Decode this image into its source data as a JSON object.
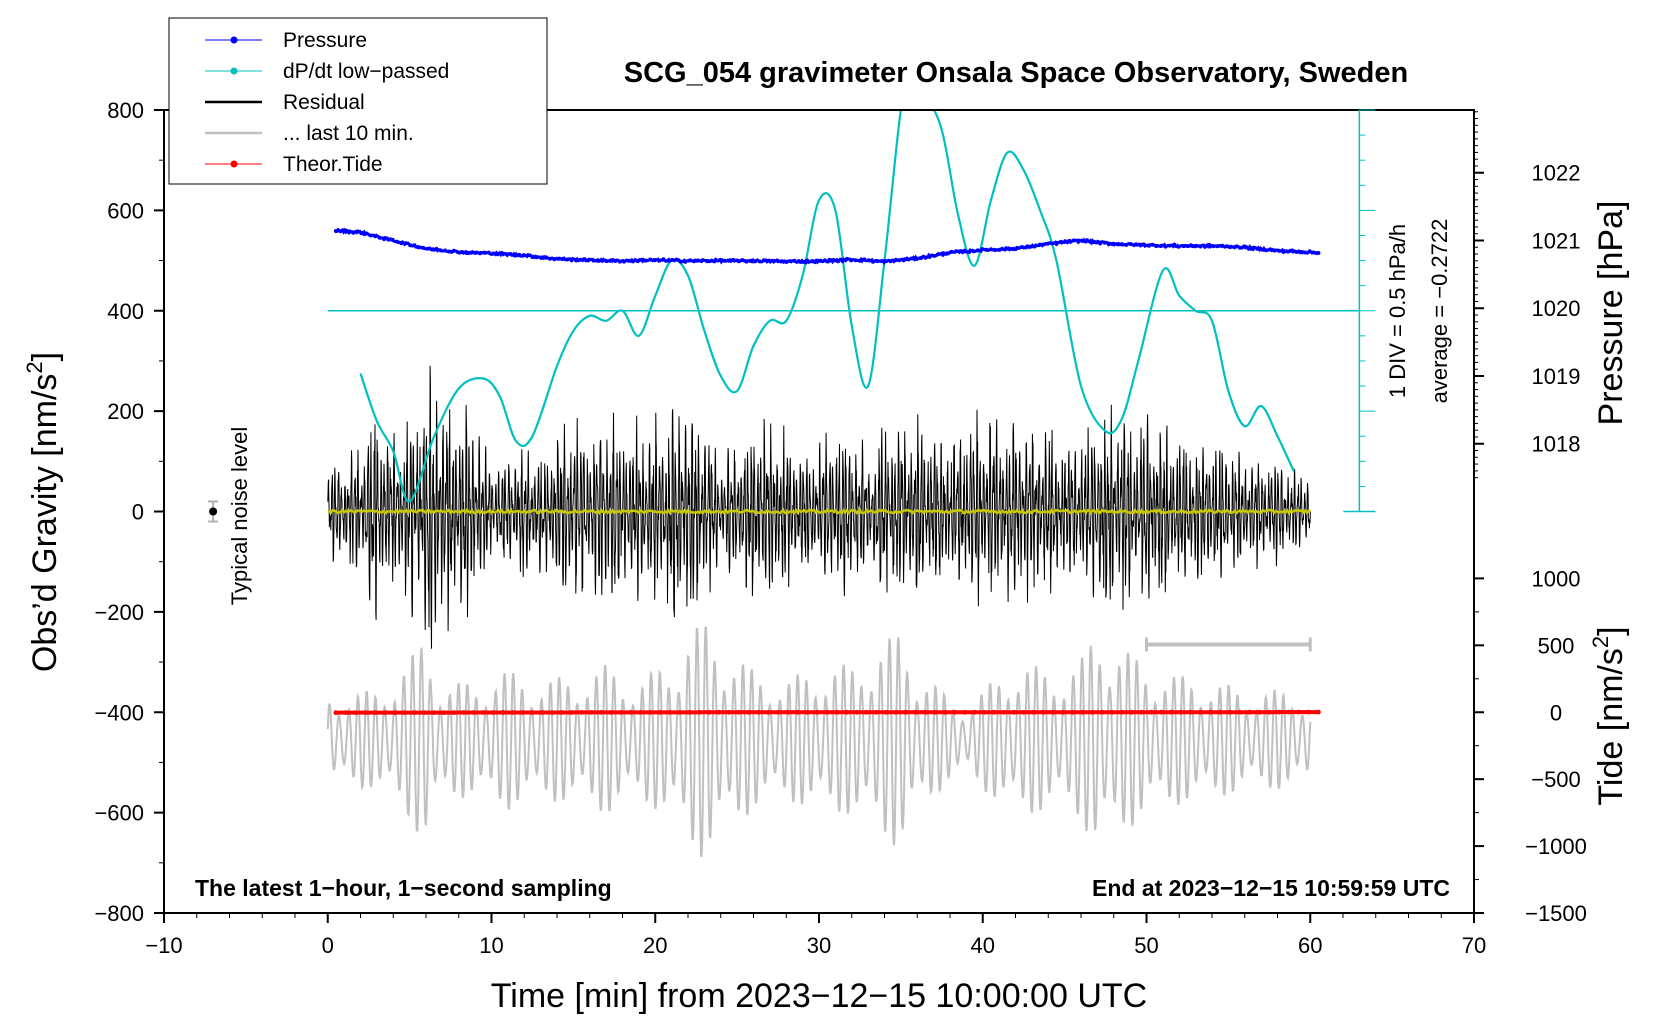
{
  "chart_data": {
    "type": "line",
    "title": "SCG_054 gravimeter Onsala Space Observatory, Sweden",
    "xlabel": "Time [min] from 2023−12−15 10:00:00 UTC",
    "xlim": [
      -10,
      70
    ],
    "xticks": [
      -10,
      0,
      10,
      20,
      30,
      40,
      50,
      60,
      70
    ],
    "xtick_labels": [
      "−10",
      "0",
      "10",
      "20",
      "30",
      "40",
      "50",
      "60",
      "70"
    ],
    "left_axis": {
      "label": "Obs’d Gravity [nm/s",
      "label_sup": "2",
      "label_close": "]",
      "ylim": [
        -800,
        800
      ],
      "ticks": [
        800,
        600,
        400,
        200,
        0,
        -200,
        -400,
        -600,
        -800
      ],
      "tick_labels": [
        "800",
        "600",
        "400",
        "200",
        "0",
        "−200",
        "−400",
        "−600",
        "−800"
      ]
    },
    "pressure_axis": {
      "label": "Pressure [hPa]",
      "ticks": [
        1022,
        1021,
        1020,
        1019,
        1018
      ],
      "tick_labels": [
        "1022",
        "1021",
        "1020",
        "1019",
        "1018"
      ],
      "hpa_1021_gravity_equiv": 540,
      "gravity_per_hpa": 135
    },
    "tide_axis": {
      "label": "Tide [nm/s",
      "label_sup": "2",
      "label_close": "]",
      "ticks": [
        1000,
        500,
        0,
        -500,
        -1000,
        -1500
      ],
      "tick_labels": [
        "1000",
        "500",
        "0",
        "−500",
        "−1000",
        "−1500"
      ],
      "zero_at_gravity": -400,
      "gravity_per_tide_unit": 0.2667
    },
    "dpdt_scale": {
      "label_div": "1 DIV = 0.5 hPa/h",
      "label_avg": "average = −0.2722",
      "zero_line_gravity": 400,
      "x_position": 63
    },
    "legend": {
      "position": "top-left",
      "entries": [
        {
          "label": "Pressure",
          "color": "#0000ff",
          "style": "line-dot"
        },
        {
          "label": "dP/dt low−passed",
          "color": "#00c0c0",
          "style": "line-dot"
        },
        {
          "label": "Residual",
          "color": "#000000",
          "style": "line"
        },
        {
          "label": "... last 10 min.",
          "color": "#c0c0c0",
          "style": "line"
        },
        {
          "label": "Theor.Tide",
          "color": "#ff0000",
          "style": "line-dot"
        }
      ]
    },
    "noise_marker": {
      "label": "Typical noise level",
      "x": -7,
      "y": 0,
      "err": 20
    },
    "last10_bar": {
      "x_start": 50,
      "x_end": 60,
      "y": -265
    },
    "bottom_left_note": "The latest 1−hour, 1−second sampling",
    "bottom_right_note": "End at 2023−12−15 10:59:59 UTC",
    "series": [
      {
        "name": "Pressure",
        "color": "#0000ff",
        "units": "hPa",
        "x": [
          0.5,
          2,
          4,
          6,
          8,
          10,
          12,
          14,
          16,
          18,
          20,
          22,
          24,
          26,
          28,
          30,
          32,
          34,
          36,
          38,
          40,
          42,
          44,
          46,
          48,
          50,
          52,
          54,
          56,
          58,
          60.5
        ],
        "values": [
          1021.15,
          1021.12,
          1021.0,
          1020.88,
          1020.83,
          1020.81,
          1020.78,
          1020.73,
          1020.71,
          1020.7,
          1020.71,
          1020.7,
          1020.7,
          1020.7,
          1020.69,
          1020.69,
          1020.72,
          1020.69,
          1020.74,
          1020.82,
          1020.86,
          1020.88,
          1020.95,
          1021.0,
          1020.95,
          1020.93,
          1020.92,
          1020.92,
          1020.9,
          1020.85,
          1020.82
        ]
      },
      {
        "name": "dP/dt low−passed",
        "color": "#00c0c0",
        "units": "nm/s2 plot units",
        "x": [
          2,
          3,
          4,
          5,
          6.5,
          8,
          9.5,
          10.5,
          11.5,
          12.5,
          14,
          15,
          16,
          17,
          18,
          19,
          20,
          21,
          22,
          23,
          24,
          25,
          26,
          27,
          28,
          29,
          30,
          31,
          32,
          33,
          34,
          35,
          35.5,
          36.5,
          37.5,
          38.5,
          39.5,
          40.5,
          41.5,
          42.5,
          43.5,
          44.5,
          46,
          47.5,
          48.5,
          49.5,
          51,
          52,
          53,
          54,
          55,
          56,
          57,
          58,
          59
        ],
        "values": [
          275,
          180,
          120,
          20,
          150,
          245,
          265,
          230,
          140,
          150,
          290,
          360,
          390,
          380,
          400,
          350,
          430,
          500,
          470,
          360,
          270,
          240,
          330,
          380,
          380,
          470,
          620,
          600,
          370,
          250,
          500,
          800,
          810,
          820,
          760,
          590,
          490,
          620,
          715,
          680,
          600,
          500,
          250,
          160,
          185,
          300,
          480,
          430,
          400,
          380,
          240,
          170,
          210,
          150,
          80
        ]
      },
      {
        "name": "Residual",
        "color": "#000000",
        "units": "nm/s2",
        "x_start": 0,
        "x_end": 60,
        "envelope_x": [
          0,
          2,
          3,
          4,
          5,
          6,
          6.5,
          7,
          8,
          9,
          10,
          11,
          12,
          13,
          14,
          15,
          16,
          17,
          18,
          19,
          20,
          21,
          22,
          23,
          24,
          25,
          26,
          27,
          28,
          29,
          30,
          31,
          32,
          33,
          34,
          35,
          36,
          37,
          38,
          39,
          40,
          41,
          42,
          43,
          44,
          45,
          46,
          47,
          48,
          49,
          50,
          51,
          52,
          53,
          54,
          55,
          56,
          57,
          58,
          59,
          60
        ],
        "envelope": [
          100,
          150,
          250,
          150,
          210,
          300,
          330,
          250,
          230,
          200,
          100,
          120,
          150,
          120,
          190,
          200,
          180,
          230,
          190,
          190,
          200,
          250,
          250,
          200,
          120,
          150,
          210,
          200,
          180,
          130,
          150,
          200,
          190,
          120,
          190,
          200,
          210,
          180,
          180,
          200,
          220,
          190,
          200,
          210,
          180,
          160,
          150,
          230,
          240,
          190,
          210,
          180,
          170,
          160,
          170,
          140,
          120,
          120,
          110,
          90,
          80
        ]
      },
      {
        "name": "... last 10 min.",
        "color": "#c0c0c0",
        "units": "nm/s2 plot units",
        "x_start": 0,
        "x_end": 60,
        "baseline": -455,
        "envelope_x": [
          0,
          3,
          5,
          6,
          7,
          9,
          11,
          13,
          15,
          17,
          19,
          21,
          22,
          23,
          24,
          26,
          28,
          30,
          32,
          33,
          35,
          36,
          38,
          39,
          40,
          42,
          44,
          46,
          47,
          48,
          50,
          52,
          54,
          56,
          58,
          60
        ],
        "envelope": [
          90,
          100,
          160,
          220,
          110,
          120,
          140,
          120,
          130,
          150,
          120,
          160,
          220,
          240,
          200,
          140,
          120,
          150,
          150,
          180,
          220,
          150,
          80,
          70,
          100,
          160,
          140,
          160,
          230,
          200,
          150,
          130,
          120,
          100,
          100,
          90
        ]
      },
      {
        "name": "Theor.Tide",
        "color": "#ff0000",
        "units": "nm/s2",
        "x": [
          0.5,
          10,
          20,
          30,
          40,
          50,
          60.5
        ],
        "values": [
          -3,
          -2,
          -1,
          0,
          0,
          0,
          1
        ]
      },
      {
        "name": "Mean residual",
        "color": "#c8c800",
        "units": "nm/s2",
        "x_start": 0,
        "x_end": 60,
        "baseline": 0
      }
    ]
  }
}
